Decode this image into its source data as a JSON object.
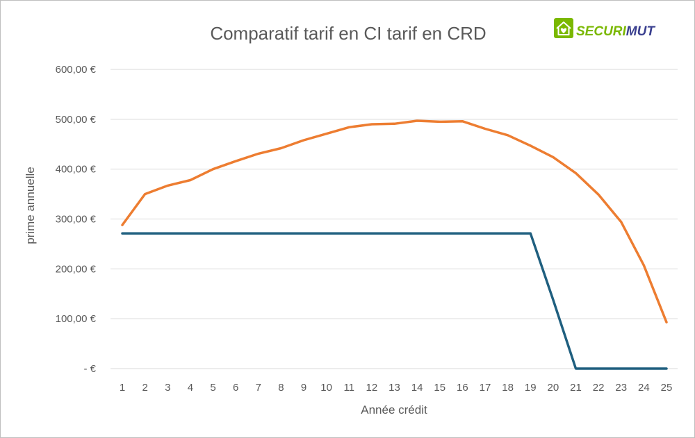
{
  "chart_data": {
    "type": "line",
    "title": "Comparatif tarif en CI tarif en CRD",
    "xlabel": "Année crédit",
    "ylabel": "prime annuelle",
    "categories": [
      "1",
      "2",
      "3",
      "4",
      "5",
      "6",
      "7",
      "8",
      "9",
      "10",
      "11",
      "12",
      "13",
      "14",
      "15",
      "16",
      "17",
      "18",
      "19",
      "20",
      "21",
      "22",
      "23",
      "24",
      "25"
    ],
    "ylim": [
      0,
      600
    ],
    "yticks": [
      {
        "value": 0,
        "label": "-  €"
      },
      {
        "value": 100,
        "label": "100,00 €"
      },
      {
        "value": 200,
        "label": "200,00 €"
      },
      {
        "value": 300,
        "label": "300,00 €"
      },
      {
        "value": 400,
        "label": "400,00 €"
      },
      {
        "value": 500,
        "label": "500,00 €"
      },
      {
        "value": 600,
        "label": "600,00 €"
      }
    ],
    "grid": true,
    "legend": "none",
    "series": [
      {
        "color": "#ed7d31",
        "values": [
          288,
          350,
          367,
          378,
          400,
          416,
          431,
          442,
          458,
          471,
          484,
          490,
          491,
          497,
          495,
          496,
          481,
          468,
          447,
          424,
          392,
          349,
          294,
          207,
          93
        ]
      },
      {
        "color": "#1f5f7f",
        "values": [
          271,
          271,
          271,
          271,
          271,
          271,
          271,
          271,
          271,
          271,
          271,
          271,
          271,
          271,
          271,
          271,
          271,
          271,
          271,
          138,
          0,
          0,
          0,
          0,
          0
        ]
      }
    ]
  },
  "logo": {
    "text_part1": "SECURI",
    "text_part2": "MUT",
    "color_primary": "#7ab800",
    "color_secondary": "#3a3f8f",
    "icon": "house-heart-icon"
  }
}
